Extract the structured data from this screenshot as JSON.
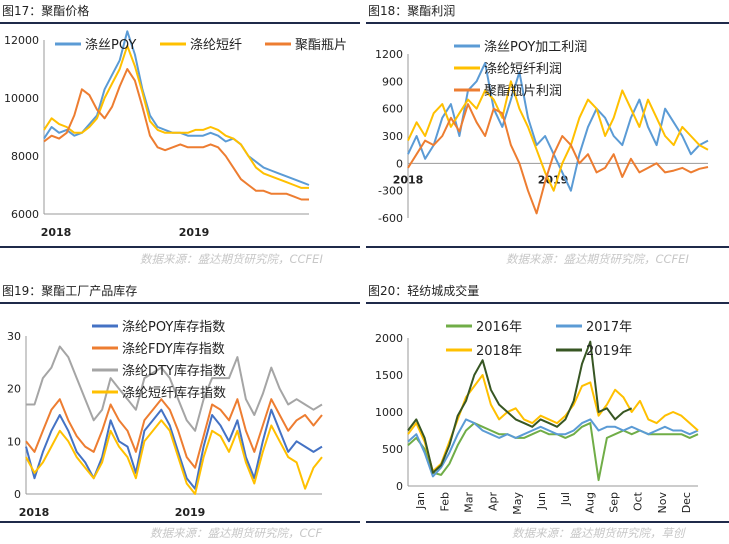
{
  "panels": [
    {
      "title": "图17：聚酯价格",
      "source": "数据来源：盛达期货研究院，CCFEI"
    },
    {
      "title": "图18：聚酯利润",
      "source": "数据来源：盛达期货研究院，CCFEI"
    },
    {
      "title": "图19：聚酯工厂产品库存",
      "source": "数据来源：盛达期货研究院，CCF"
    },
    {
      "title": "图20：轻纺城成交量",
      "source": "数据来源：盛达期货研究院，草创"
    }
  ],
  "chart_data": [
    {
      "type": "line",
      "ylim": [
        6000,
        12000
      ],
      "yticks": [
        6000,
        8000,
        10000,
        12000
      ],
      "xticks": [
        "2018",
        "2019"
      ],
      "legend_position": "top",
      "series": [
        {
          "name": "涤丝POY",
          "color": "#5b9bd5",
          "values": [
            8600,
            9000,
            8800,
            8900,
            8700,
            8800,
            9100,
            9400,
            10300,
            10800,
            11300,
            12300,
            11500,
            10300,
            9400,
            9000,
            8900,
            8800,
            8800,
            8700,
            8700,
            8700,
            8800,
            8700,
            8500,
            8600,
            8400,
            8000,
            7800,
            7600,
            7500,
            7400,
            7300,
            7200,
            7100,
            7000
          ]
        },
        {
          "name": "涤纶短纤",
          "color": "#ffc000",
          "values": [
            8900,
            9300,
            9100,
            9000,
            8800,
            8800,
            9000,
            9300,
            10000,
            10500,
            11000,
            11800,
            11100,
            10200,
            9200,
            8900,
            8800,
            8800,
            8800,
            8800,
            8900,
            8900,
            9000,
            8900,
            8700,
            8600,
            8400,
            8000,
            7600,
            7400,
            7300,
            7200,
            7100,
            7000,
            6900,
            6900
          ]
        },
        {
          "name": "聚酯瓶片",
          "color": "#ed7d31",
          "values": [
            8500,
            8700,
            8600,
            8800,
            9400,
            10300,
            10100,
            9600,
            9300,
            9700,
            10400,
            11000,
            10600,
            9700,
            8700,
            8300,
            8200,
            8300,
            8400,
            8300,
            8300,
            8300,
            8400,
            8300,
            8000,
            7600,
            7200,
            7000,
            6800,
            6800,
            6700,
            6700,
            6700,
            6600,
            6500,
            6500
          ]
        }
      ]
    },
    {
      "type": "line",
      "ylim": [
        -600,
        1200
      ],
      "yticks": [
        -600,
        -300,
        0,
        300,
        600,
        900,
        1200
      ],
      "xticks": [
        "2018",
        "2019"
      ],
      "legend_position": "top",
      "series": [
        {
          "name": "涤丝POY加工利润",
          "color": "#5b9bd5",
          "values": [
            100,
            300,
            50,
            200,
            500,
            650,
            300,
            800,
            900,
            1100,
            600,
            400,
            700,
            1000,
            500,
            200,
            300,
            100,
            -100,
            -300,
            100,
            400,
            600,
            500,
            300,
            200,
            500,
            700,
            400,
            200,
            600,
            450,
            300,
            100,
            200,
            250
          ]
        },
        {
          "name": "涤纶短纤利润",
          "color": "#ffc000",
          "values": [
            250,
            450,
            300,
            550,
            650,
            400,
            550,
            700,
            600,
            800,
            700,
            500,
            900,
            600,
            400,
            150,
            -100,
            -300,
            0,
            200,
            500,
            700,
            600,
            300,
            500,
            800,
            600,
            400,
            700,
            500,
            300,
            200,
            400,
            300,
            200,
            150
          ]
        },
        {
          "name": "聚酯瓶片利润",
          "color": "#ed7d31",
          "values": [
            -50,
            100,
            250,
            200,
            300,
            500,
            350,
            650,
            450,
            300,
            600,
            550,
            200,
            0,
            -300,
            -550,
            -200,
            100,
            300,
            200,
            0,
            100,
            -100,
            -50,
            100,
            -150,
            50,
            -100,
            -50,
            0,
            -100,
            -80,
            -50,
            -100,
            -60,
            -40
          ]
        }
      ]
    },
    {
      "type": "line",
      "ylim": [
        0,
        30
      ],
      "yticks": [
        0,
        10,
        20,
        30
      ],
      "xticks": [
        "2018",
        "2019"
      ],
      "legend_position": "top",
      "series": [
        {
          "name": "涤纶POY库存指数",
          "color": "#4472c4",
          "values": [
            9,
            3,
            8,
            12,
            15,
            12,
            8,
            6,
            3,
            7,
            14,
            10,
            9,
            4,
            12,
            14,
            16,
            13,
            8,
            3,
            1,
            9,
            15,
            13,
            10,
            14,
            7,
            3,
            10,
            16,
            12,
            8,
            10,
            9,
            8,
            9
          ]
        },
        {
          "name": "涤纶FDY库存指数",
          "color": "#ed7d31",
          "values": [
            10,
            8,
            12,
            16,
            18,
            14,
            11,
            9,
            8,
            12,
            17,
            14,
            12,
            8,
            14,
            16,
            18,
            16,
            12,
            7,
            5,
            11,
            17,
            16,
            14,
            18,
            12,
            8,
            13,
            18,
            15,
            12,
            14,
            15,
            13,
            15
          ]
        },
        {
          "name": "涤纶DTY库存指数",
          "color": "#a5a5a5",
          "values": [
            17,
            17,
            22,
            24,
            28,
            26,
            22,
            18,
            14,
            16,
            22,
            20,
            18,
            16,
            22,
            23,
            24,
            22,
            18,
            14,
            12,
            18,
            22,
            22,
            22,
            26,
            18,
            15,
            19,
            24,
            20,
            17,
            18,
            17,
            16,
            17
          ]
        },
        {
          "name": "涤纶短纤库存指数",
          "color": "#ffc000",
          "values": [
            7,
            4,
            6,
            9,
            12,
            10,
            7,
            5,
            3,
            6,
            12,
            9,
            7,
            3,
            10,
            12,
            14,
            12,
            7,
            2,
            0,
            7,
            12,
            11,
            8,
            12,
            6,
            2,
            8,
            13,
            10,
            7,
            6,
            1,
            5,
            7
          ]
        }
      ]
    },
    {
      "type": "line",
      "ylim": [
        0,
        2000
      ],
      "yticks": [
        0,
        500,
        1000,
        1500,
        2000
      ],
      "xticks": [
        "Jan",
        "Feb",
        "Mar",
        "Apr",
        "May",
        "Jun",
        "Jul",
        "Aug",
        "Sep",
        "Oct",
        "Nov",
        "Dec"
      ],
      "legend_position": "top",
      "series": [
        {
          "name": "2016年",
          "color": "#70ad47",
          "values": [
            550,
            650,
            500,
            180,
            150,
            300,
            550,
            750,
            850,
            800,
            750,
            700,
            700,
            650,
            650,
            700,
            750,
            700,
            700,
            650,
            700,
            800,
            850,
            80,
            650,
            700,
            750,
            700,
            750,
            700,
            700,
            700,
            700,
            700,
            650,
            700
          ]
        },
        {
          "name": "2017年",
          "color": "#5b9bd5",
          "values": [
            600,
            700,
            450,
            130,
            250,
            450,
            700,
            900,
            850,
            750,
            700,
            650,
            700,
            650,
            700,
            750,
            800,
            750,
            700,
            700,
            750,
            850,
            900,
            750,
            800,
            800,
            750,
            800,
            750,
            700,
            750,
            800,
            750,
            750,
            700,
            750
          ]
        },
        {
          "name": "2018年",
          "color": "#ffc000",
          "values": [
            700,
            850,
            600,
            200,
            300,
            600,
            900,
            1200,
            1350,
            1500,
            1100,
            900,
            1000,
            1050,
            900,
            850,
            950,
            900,
            850,
            950,
            1100,
            1350,
            1400,
            950,
            1100,
            1300,
            1200,
            1000,
            1150,
            900,
            850,
            950,
            1000,
            950,
            850,
            750
          ]
        },
        {
          "name": "2019年",
          "color": "#375623",
          "values": [
            750,
            900,
            650,
            180,
            280,
            550,
            950,
            1150,
            1500,
            1700,
            1300,
            1100,
            1000,
            900,
            850,
            800,
            900,
            850,
            800,
            900,
            1150,
            1650,
            1950,
            1000,
            1050,
            900,
            1000,
            1050,
            null,
            null,
            null,
            null,
            null,
            null,
            null,
            null
          ]
        }
      ]
    }
  ]
}
